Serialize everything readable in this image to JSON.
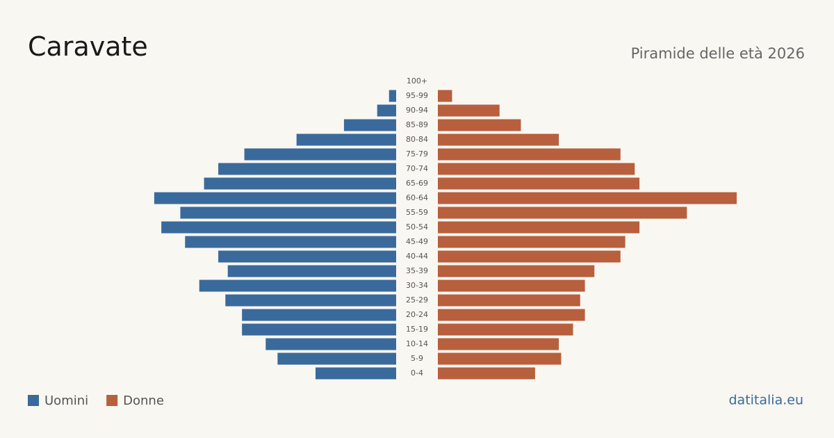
{
  "chart_data": {
    "type": "pyramid",
    "title": "Caravate",
    "subtitle": "Piramide delle età 2026",
    "source": "datitalia.eu",
    "categories": [
      "100+",
      "95-99",
      "90-94",
      "85-89",
      "80-84",
      "75-79",
      "70-74",
      "65-69",
      "60-64",
      "55-59",
      "50-54",
      "45-49",
      "40-44",
      "35-39",
      "30-34",
      "25-29",
      "20-24",
      "15-19",
      "10-14",
      "5-9",
      "0-4"
    ],
    "series": [
      {
        "name": "Uomini",
        "color": "#3a6a9b",
        "values": [
          0,
          3,
          8,
          22,
          42,
          64,
          75,
          81,
          102,
          91,
          99,
          89,
          75,
          71,
          83,
          72,
          65,
          65,
          55,
          50,
          34
        ]
      },
      {
        "name": "Donne",
        "color": "#b85f3d",
        "values": [
          0,
          6,
          26,
          35,
          51,
          77,
          83,
          85,
          126,
          105,
          85,
          79,
          77,
          66,
          62,
          60,
          62,
          57,
          51,
          52,
          41
        ]
      }
    ]
  }
}
